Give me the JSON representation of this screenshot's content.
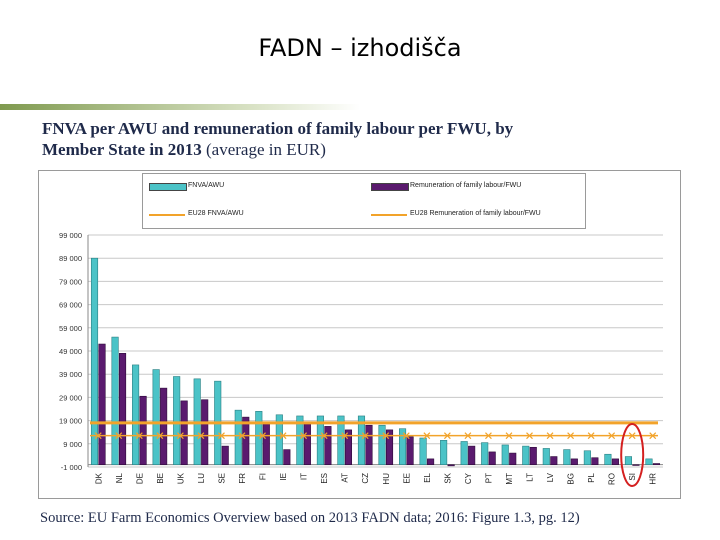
{
  "slide": {
    "title": "FADN – izhodišča"
  },
  "heading": {
    "line1": "FNVA per AWU and remuneration of family labour per FWU, by",
    "line2_bold": "Member State in 2013",
    "line2_light": " (average in EUR)"
  },
  "source": "Source: EU Farm Economics Overview based on 2013 FADN data; 2016: Figure 1.3, pg. 12)",
  "colors": {
    "fnva": "#4bc3c7",
    "remuneration": "#5a1a6e",
    "eu_fnva": "#f2a32a",
    "eu_rem": "#f2a32a",
    "highlight": "#d42020"
  },
  "chart_data": {
    "type": "bar",
    "title": "FNVA per AWU and remuneration of family labour per FWU, by Member State in 2013 (average in EUR)",
    "categories": [
      "DK",
      "NL",
      "DE",
      "BE",
      "UK",
      "LU",
      "SE",
      "FR",
      "FI",
      "IE",
      "IT",
      "ES",
      "AT",
      "CZ",
      "HU",
      "EE",
      "EL",
      "SK",
      "CY",
      "PT",
      "MT",
      "LT",
      "LV",
      "BG",
      "PL",
      "RO",
      "SI",
      "HR"
    ],
    "series": [
      {
        "name": "FNVA/AWU",
        "values": [
          89000,
          55000,
          43000,
          41000,
          38000,
          37000,
          36000,
          23500,
          23000,
          21500,
          21000,
          21000,
          21000,
          21000,
          17000,
          15500,
          11500,
          10500,
          10000,
          9500,
          8500,
          8000,
          7000,
          6500,
          6000,
          4500,
          3500,
          2500
        ]
      },
      {
        "name": "Remuneration of family labour/FWU",
        "values": [
          52000,
          48000,
          29500,
          33000,
          27500,
          28000,
          8000,
          20500,
          17500,
          6500,
          17500,
          16500,
          15000,
          17000,
          15000,
          12000,
          2500,
          -500,
          8000,
          5500,
          5000,
          7500,
          3500,
          2500,
          3000,
          2500,
          0,
          500
        ]
      }
    ],
    "reference_lines": [
      {
        "name": "EU28 FNVA/AWU",
        "value": 18000
      },
      {
        "name": "EU28 Remuneration of family labour/FWU",
        "value": 12500
      }
    ],
    "y_ticks": [
      "99 000",
      "89 000",
      "79 000",
      "69 000",
      "59 000",
      "49 000",
      "39 000",
      "29 000",
      "19 000",
      "9 000",
      "-1 000"
    ],
    "ylim": [
      -1000,
      99000
    ],
    "grid": true,
    "legend": "top",
    "highlighted_category": "SI"
  }
}
